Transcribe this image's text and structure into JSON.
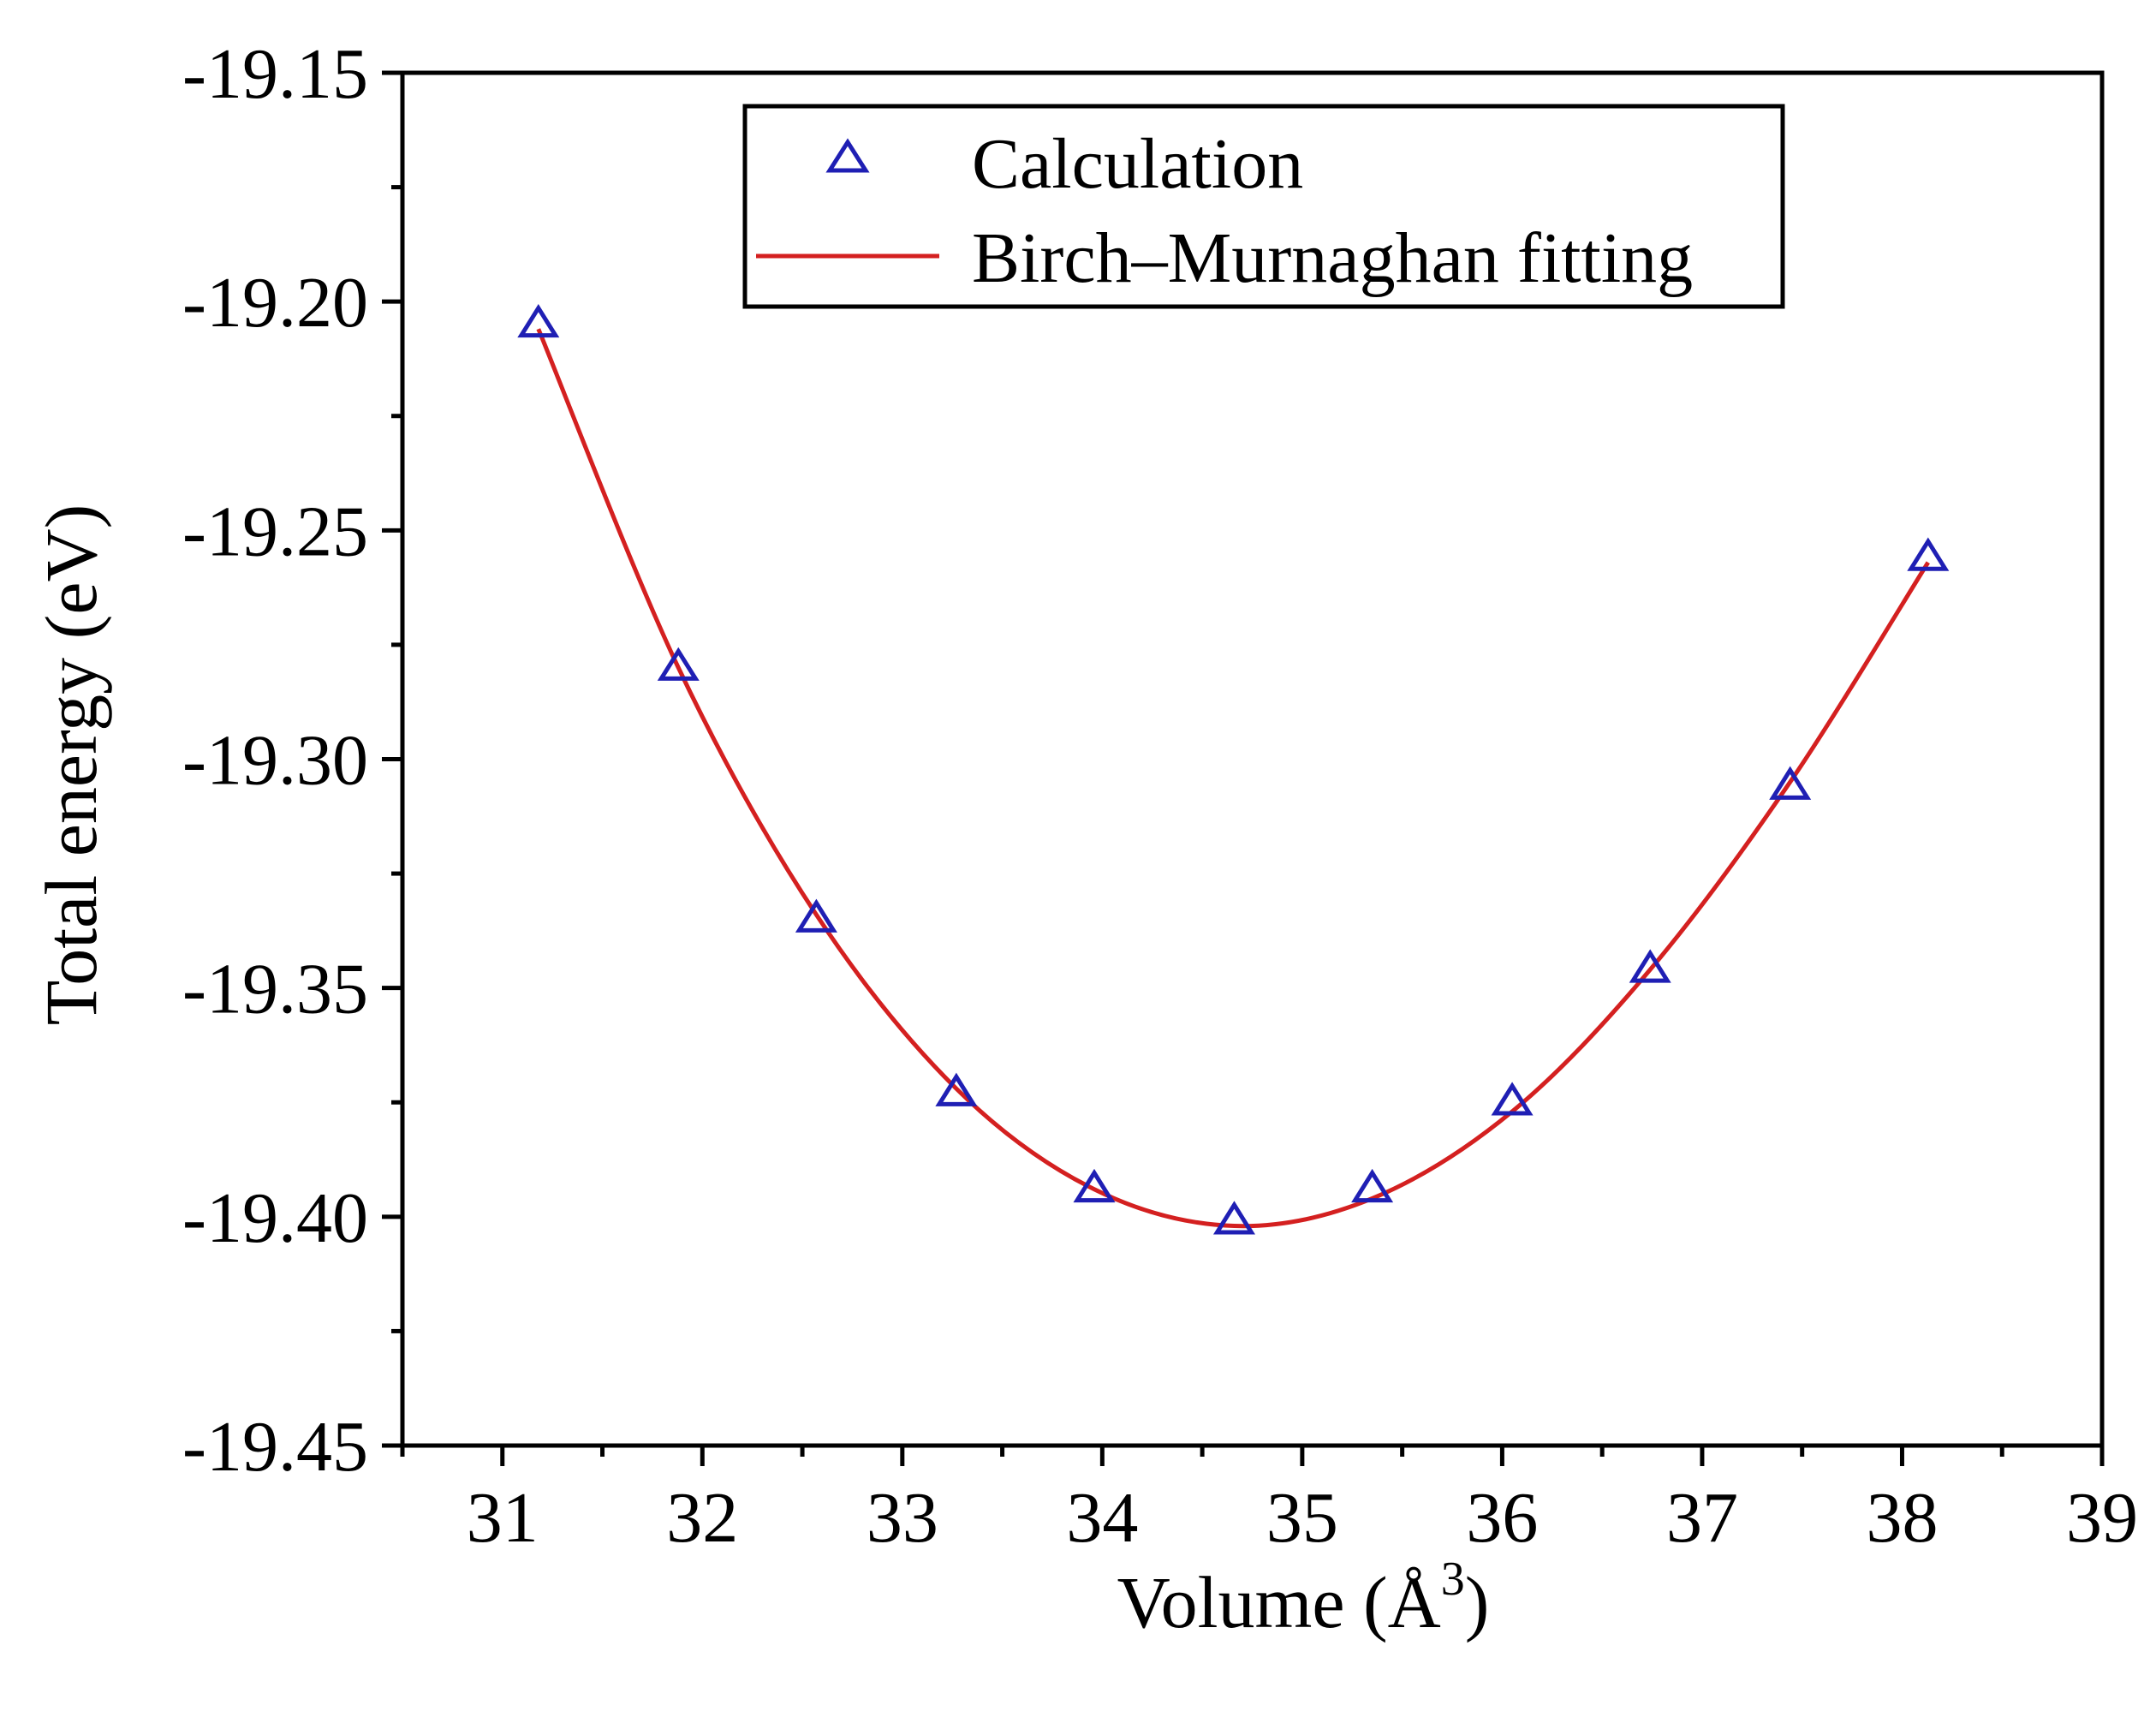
{
  "chart_data": {
    "type": "scatter",
    "title": "",
    "xlabel": "Volume (Å",
    "xlabel_superscript": "3",
    "xlabel_suffix": ")",
    "ylabel": "Total energy (eV)",
    "xlim": [
      30.5,
      39
    ],
    "ylim": [
      -19.45,
      -19.15
    ],
    "x_ticks": [
      "31",
      "32",
      "33",
      "34",
      "35",
      "36",
      "37",
      "38",
      "39"
    ],
    "y_ticks": [
      "-19.15",
      "-19.20",
      "-19.25",
      "-19.30",
      "-19.35",
      "-19.40",
      "-19.45"
    ],
    "grid": false,
    "legend_position": "top-center",
    "series": [
      {
        "name": "Calculation",
        "kind": "scatter",
        "marker": "open-triangle",
        "color": "#1f1fb4",
        "x": [
          31.18,
          31.88,
          32.57,
          33.27,
          33.96,
          34.66,
          35.35,
          36.05,
          36.74,
          37.44,
          38.13
        ],
        "y": [
          -19.205,
          -19.28,
          -19.335,
          -19.373,
          -19.394,
          -19.401,
          -19.394,
          -19.375,
          -19.346,
          -19.306,
          -19.256
        ]
      },
      {
        "name": "Birch–Murnaghan fitting",
        "kind": "line",
        "color": "#d42020",
        "x": [
          31.18,
          31.88,
          32.57,
          33.27,
          33.96,
          34.66,
          35.35,
          36.05,
          36.74,
          37.44,
          38.13
        ],
        "y": [
          -19.206,
          -19.28,
          -19.334,
          -19.372,
          -19.394,
          -19.402,
          -19.396,
          -19.377,
          -19.346,
          -19.305,
          -19.257
        ]
      }
    ]
  }
}
